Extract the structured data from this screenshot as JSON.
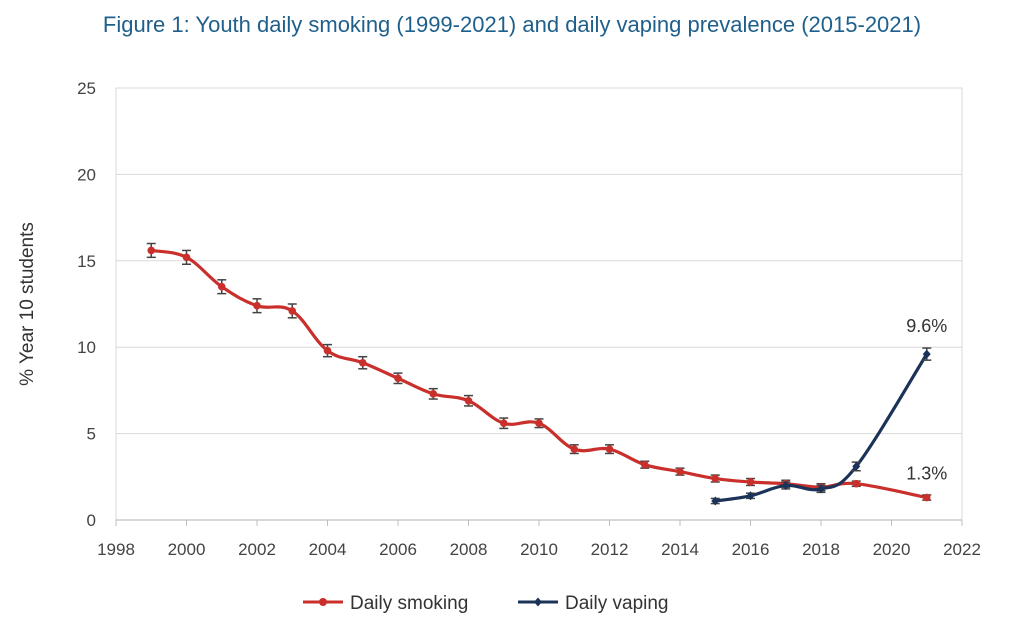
{
  "chart_data": {
    "type": "line",
    "title": "Figure 1: Youth daily smoking (1999-2021) and daily vaping prevalence (2015-2021)",
    "ylabel": "% Year 10 students",
    "xlabel": "",
    "xlim": [
      1998,
      2022
    ],
    "ylim": [
      0,
      25
    ],
    "x_ticks": [
      "1998",
      "2000",
      "2002",
      "2004",
      "2006",
      "2008",
      "2010",
      "2012",
      "2014",
      "2016",
      "2018",
      "2020",
      "2022"
    ],
    "y_ticks": [
      "0",
      "5",
      "10",
      "15",
      "20",
      "25"
    ],
    "grid": "horizontal",
    "legend_position": "bottom",
    "series": [
      {
        "name": "Daily smoking",
        "color": "#c9302c",
        "marker": "circle",
        "x": [
          1999,
          2000,
          2001,
          2002,
          2003,
          2004,
          2005,
          2006,
          2007,
          2008,
          2009,
          2010,
          2011,
          2012,
          2013,
          2014,
          2015,
          2016,
          2017,
          2018,
          2019,
          2021
        ],
        "values": [
          15.6,
          15.2,
          13.5,
          12.4,
          12.1,
          9.8,
          9.1,
          8.2,
          7.3,
          6.9,
          5.6,
          5.6,
          4.1,
          4.1,
          3.2,
          2.8,
          2.4,
          2.2,
          2.1,
          1.9,
          2.1,
          1.3
        ],
        "error": [
          0.4,
          0.4,
          0.4,
          0.4,
          0.4,
          0.35,
          0.35,
          0.3,
          0.3,
          0.3,
          0.3,
          0.25,
          0.25,
          0.25,
          0.2,
          0.2,
          0.2,
          0.2,
          0.2,
          0.2,
          0.15,
          0.15
        ]
      },
      {
        "name": "Daily vaping",
        "color": "#1b3358",
        "marker": "diamond",
        "x": [
          2015,
          2016,
          2017,
          2018,
          2019,
          2021
        ],
        "values": [
          1.1,
          1.4,
          2.0,
          1.8,
          3.1,
          9.6
        ],
        "error": [
          0.15,
          0.15,
          0.2,
          0.2,
          0.25,
          0.35
        ]
      }
    ],
    "annotations": [
      {
        "text": "9.6%",
        "x": 2021,
        "y": 9.6,
        "series": "Daily vaping"
      },
      {
        "text": "1.3%",
        "x": 2021,
        "y": 1.3,
        "series": "Daily smoking"
      }
    ]
  }
}
